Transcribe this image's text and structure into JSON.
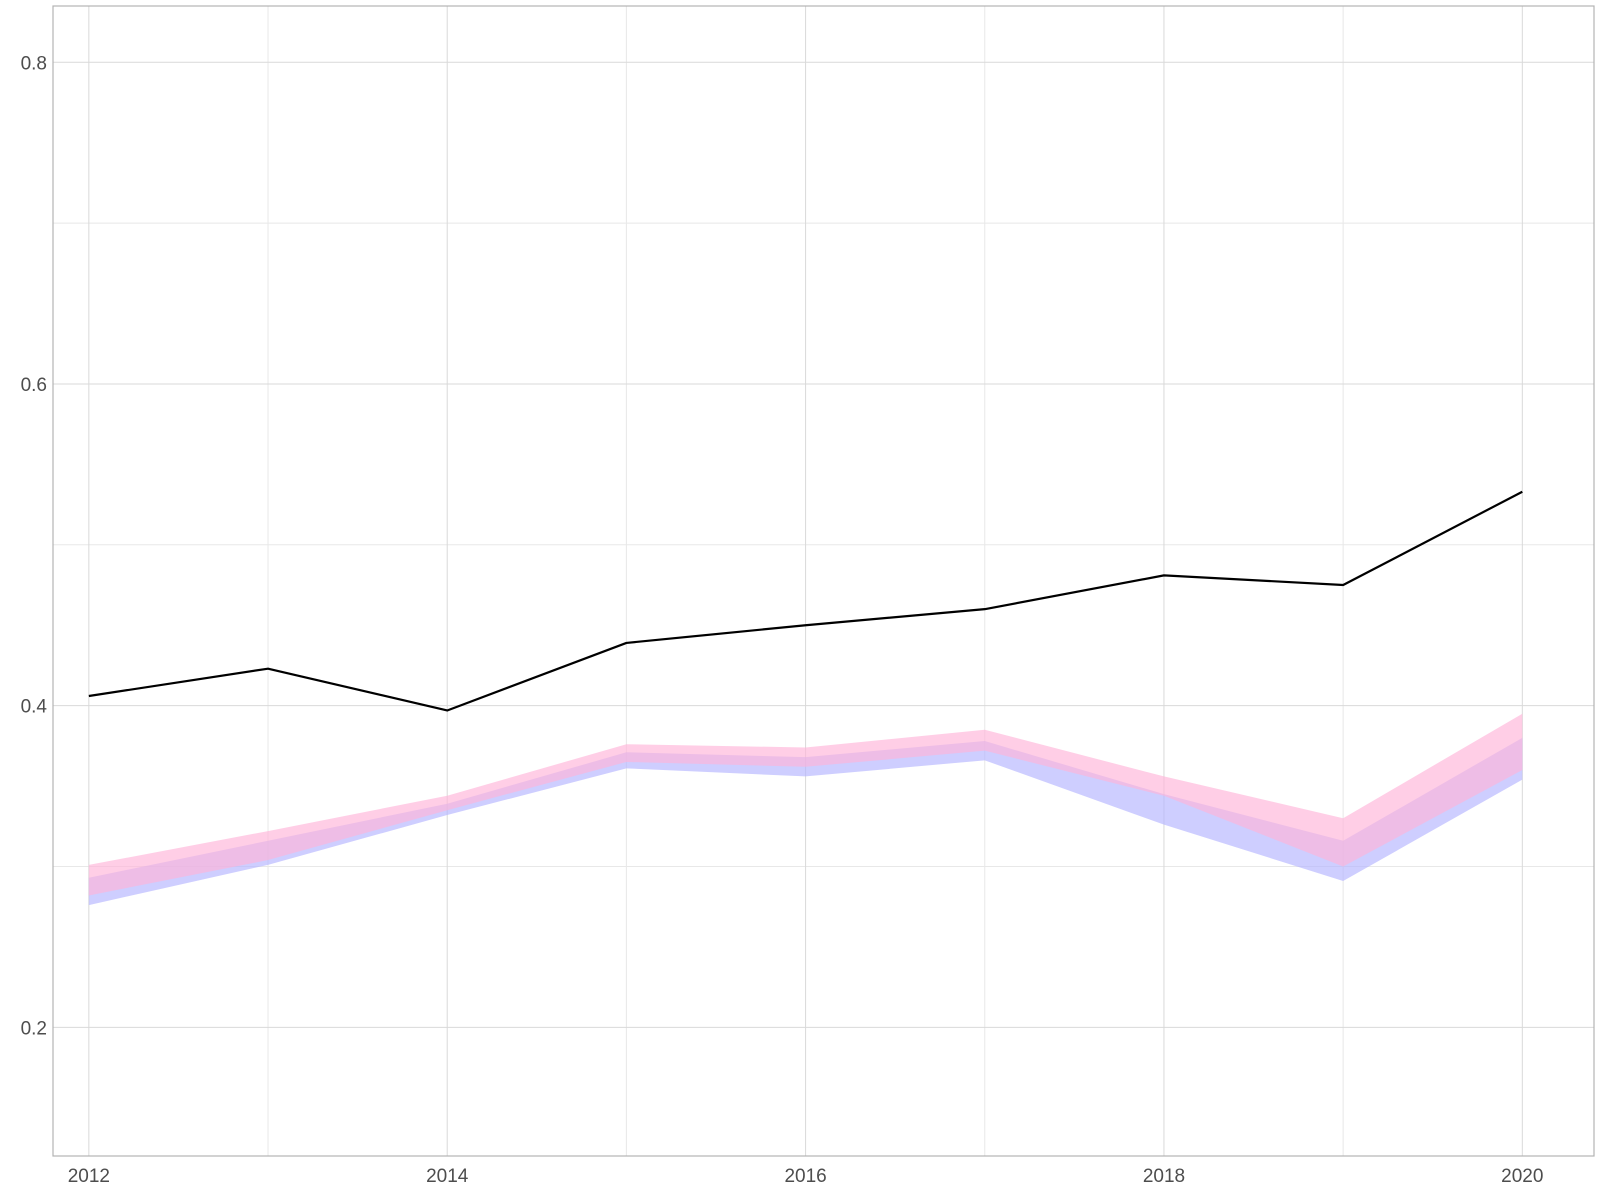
{
  "chart_data": {
    "type": "line",
    "title": "",
    "xlabel": "",
    "ylabel": "",
    "xlim": [
      2011.8,
      2020.4
    ],
    "ylim": [
      0.12,
      0.835
    ],
    "x_ticks": [
      2012,
      2014,
      2016,
      2018,
      2020
    ],
    "x_tick_labels": [
      "2012",
      "2014",
      "2016",
      "2018",
      "2020"
    ],
    "y_ticks": [
      0.2,
      0.4,
      0.6,
      0.8
    ],
    "y_tick_labels": [
      "0.2",
      "0.4",
      "0.6",
      "0.8"
    ],
    "grid": true,
    "legend": "none",
    "x": [
      2012,
      2013,
      2014,
      2015,
      2016,
      2017,
      2018,
      2019,
      2020
    ],
    "series": [
      {
        "type": "line",
        "color": "#000000",
        "values": [
          0.406,
          0.423,
          0.397,
          0.439,
          0.45,
          0.46,
          0.481,
          0.475,
          0.533
        ]
      }
    ],
    "bands": [
      {
        "color": "#b3b3ff",
        "opacity": 0.65,
        "lower": [
          0.276,
          0.301,
          0.332,
          0.361,
          0.356,
          0.366,
          0.326,
          0.291,
          0.354
        ],
        "upper": [
          0.293,
          0.316,
          0.339,
          0.371,
          0.368,
          0.378,
          0.345,
          0.316,
          0.38
        ]
      },
      {
        "color": "#ffb3d9",
        "opacity": 0.65,
        "lower": [
          0.282,
          0.304,
          0.335,
          0.365,
          0.362,
          0.372,
          0.344,
          0.3,
          0.36
        ],
        "upper": [
          0.301,
          0.322,
          0.344,
          0.376,
          0.374,
          0.385,
          0.356,
          0.33,
          0.395
        ]
      }
    ]
  }
}
